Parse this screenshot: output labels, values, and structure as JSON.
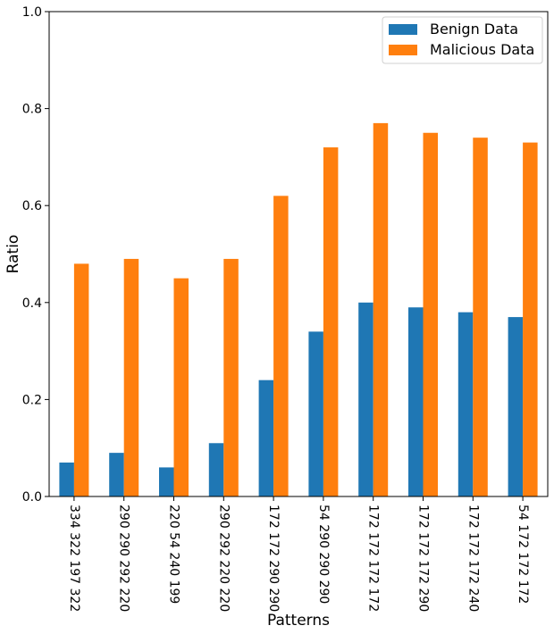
{
  "chart_data": {
    "type": "bar",
    "title": "",
    "xlabel": "Patterns",
    "ylabel": "Ratio",
    "ylim": [
      0,
      1.0
    ],
    "yticks": [
      "0.0",
      "0.2",
      "0.4",
      "0.6",
      "0.8",
      "1.0"
    ],
    "categories": [
      "334 322 197 322",
      "290 290 292 220",
      "220 54 240 199",
      "290 292 220 220",
      "172 172 290 290",
      "54 290 290 290",
      "172 172 172 172",
      "172 172 172 290",
      "172 172 172 240",
      "54 172 172 172"
    ],
    "series": [
      {
        "name": "Benign Data",
        "color": "#1f77b4",
        "values": [
          0.07,
          0.09,
          0.06,
          0.11,
          0.24,
          0.34,
          0.4,
          0.39,
          0.38,
          0.37
        ]
      },
      {
        "name": "Malicious Data",
        "color": "#ff7f0e",
        "values": [
          0.48,
          0.49,
          0.45,
          0.49,
          0.62,
          0.72,
          0.77,
          0.75,
          0.74,
          0.73
        ]
      }
    ],
    "legend_position": "top-right",
    "grid": false
  }
}
